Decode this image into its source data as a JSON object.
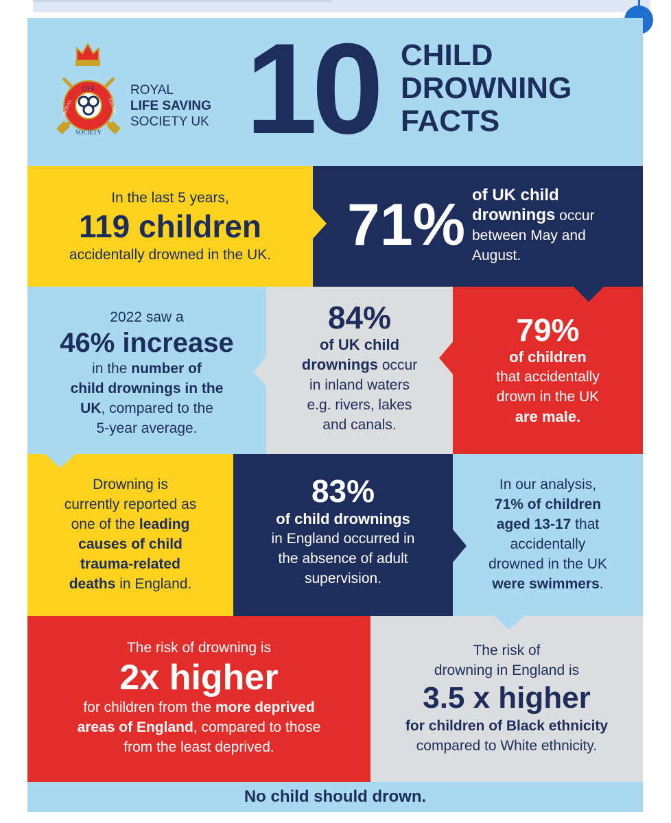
{
  "logo": {
    "badge_words": [
      "LIFE",
      "ROYAL",
      "SAVING",
      "SOCIETY"
    ],
    "org_lines": [
      "ROYAL",
      "LIFE SAVING",
      "SOCIETY UK"
    ]
  },
  "header": {
    "number": "10",
    "title_lines": [
      "CHILD",
      "DROWNING",
      "FACTS"
    ]
  },
  "facts": {
    "f1": {
      "line1": "In the last 5 years,",
      "headline": "119 children",
      "line3": "accidentally drowned in the UK."
    },
    "f2": {
      "stat": "71%",
      "bold1": "of UK child",
      "bold2": "drownings",
      "rest2": " occur",
      "line3": "between May and",
      "line4": "August."
    },
    "f3": {
      "line1": "2022 saw a",
      "headline": "46% increase",
      "l3a": "in the ",
      "l3b": "number of",
      "l4": "child drownings in the",
      "l5a": "UK",
      "l5b": ", compared to the",
      "l6": "5-year average."
    },
    "f4": {
      "stat": "84%",
      "bold1": "of UK child",
      "bold2": "drownings",
      "rest2": " occur",
      "line3": "in inland waters",
      "line4": "e.g. rivers, lakes",
      "line5": "and canals."
    },
    "f5": {
      "stat": "79%",
      "bold1": "of children",
      "line2": "that accidentally",
      "line3": "drown in the UK",
      "bold4": "are male."
    },
    "f6": {
      "l1": "Drowning is",
      "l2": "currently reported as",
      "l3a": "one of the ",
      "l3b": "leading",
      "l4": "causes of child",
      "l5": "trauma-related",
      "l6a": "deaths",
      "l6b": " in England."
    },
    "f7": {
      "stat": "83%",
      "bold1": "of child drownings",
      "l2": "in England occurred in",
      "l3": "the absence of adult",
      "l4": "supervision."
    },
    "f8": {
      "l1": "In our analysis,",
      "b2": "71% of children",
      "b3": "aged 13-17",
      "r3": " that",
      "l4": "accidentally",
      "l5": "drowned in the UK",
      "b6": "were swimmers",
      "r6": "."
    },
    "f9": {
      "l1": "The risk of drowning is",
      "headline": "2x higher",
      "l3a": "for children from the ",
      "l3b": "more deprived",
      "l4a": "areas of England",
      "l4b": ", compared to those",
      "l5": "from the least deprived."
    },
    "f10": {
      "l1": "The risk of",
      "l2": "drowning in England is",
      "headline": "3.5 x higher",
      "l4a": "for children of Black ethnicity",
      "l5": "compared to White ethnicity."
    }
  },
  "footer": {
    "text": "No child should drown."
  },
  "colors": {
    "navy": "#1d2d5c",
    "yellow": "#fcd21e",
    "red": "#e22d2b",
    "light_blue": "#a9d8f1",
    "grey": "#dcdddf",
    "accent_dot": "#1f6fd1"
  }
}
